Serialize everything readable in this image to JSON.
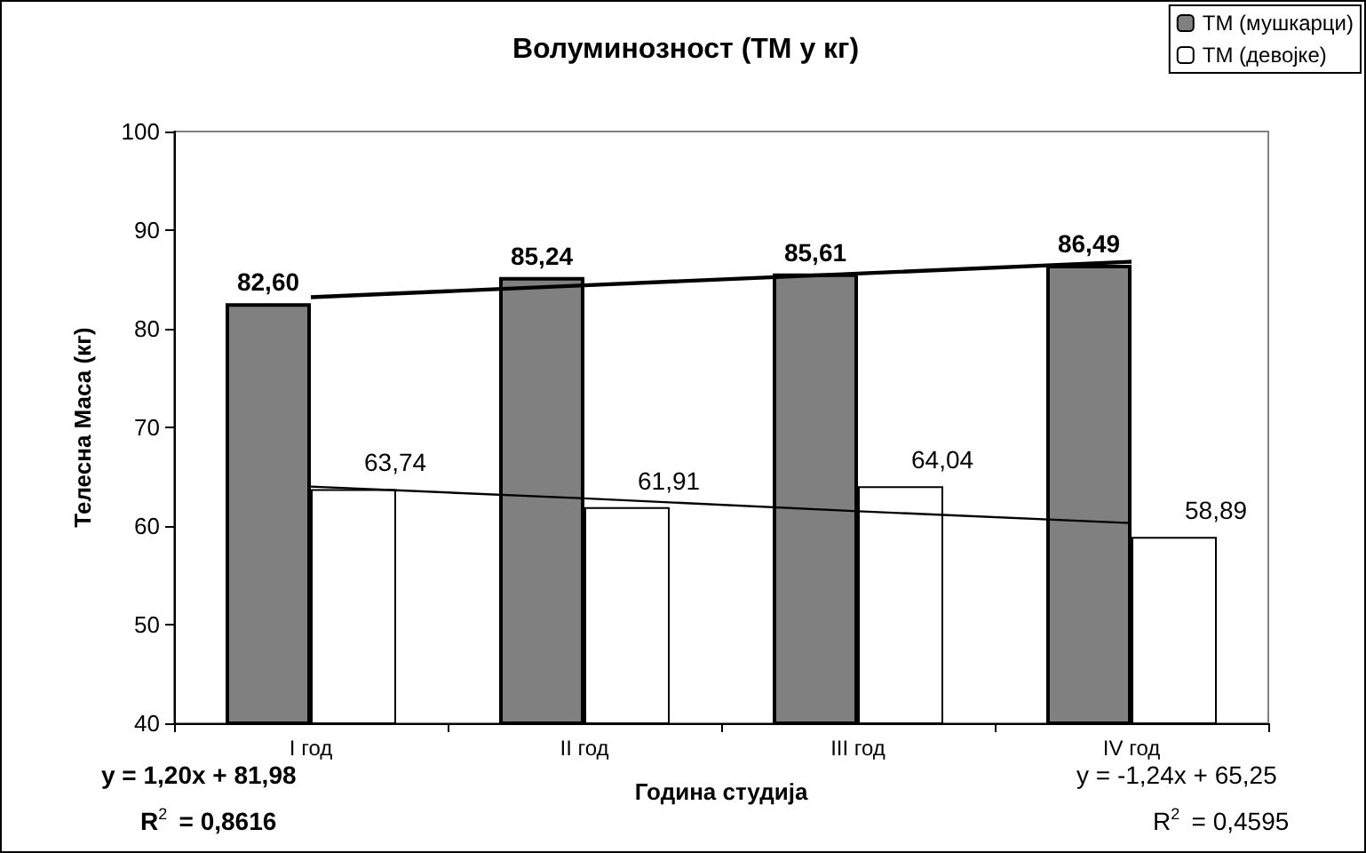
{
  "chart_data": {
    "type": "bar",
    "title": "Волуминозност (ТМ у кг)",
    "xlabel": "Година студија",
    "ylabel": "Телесна Маса (кг)",
    "categories": [
      "I год",
      "II год",
      "III год",
      "IV год"
    ],
    "series": [
      {
        "name": "ТМ (мушкарци)",
        "color": "#808080",
        "values": [
          82.6,
          85.24,
          85.61,
          86.49
        ],
        "value_labels": [
          "82,60",
          "85,24",
          "85,61",
          "86,49"
        ]
      },
      {
        "name": "ТМ (девојке)",
        "color": "#ffffff",
        "values": [
          63.74,
          61.91,
          64.04,
          58.89
        ],
        "value_labels": [
          "63,74",
          "61,91",
          "64,04",
          "58,89"
        ]
      },
      {
        "type": "line",
        "color": "#000000",
        "x": [
          "I год",
          "II год",
          "III год",
          "IV год"
        ],
        "values": [
          83.2,
          84.4,
          85.6,
          86.8
        ]
      },
      {
        "type": "line",
        "color": "#000000",
        "x": [
          "I год",
          "II год",
          "III год",
          "IV год"
        ],
        "values": [
          64.0,
          62.8,
          61.5,
          60.3
        ]
      }
    ],
    "ylim": [
      40,
      100
    ],
    "yticks": [
      40,
      50,
      60,
      70,
      80,
      90,
      100
    ],
    "grid": false,
    "legend": "top right",
    "marker": "none",
    "annotations": [
      "y = 1,20x + 81,98",
      "R$^{2}$ = 0,8616",
      "y = -1,24x + 65,25",
      "R$^{2}$ = 0,4595"
    ]
  }
}
